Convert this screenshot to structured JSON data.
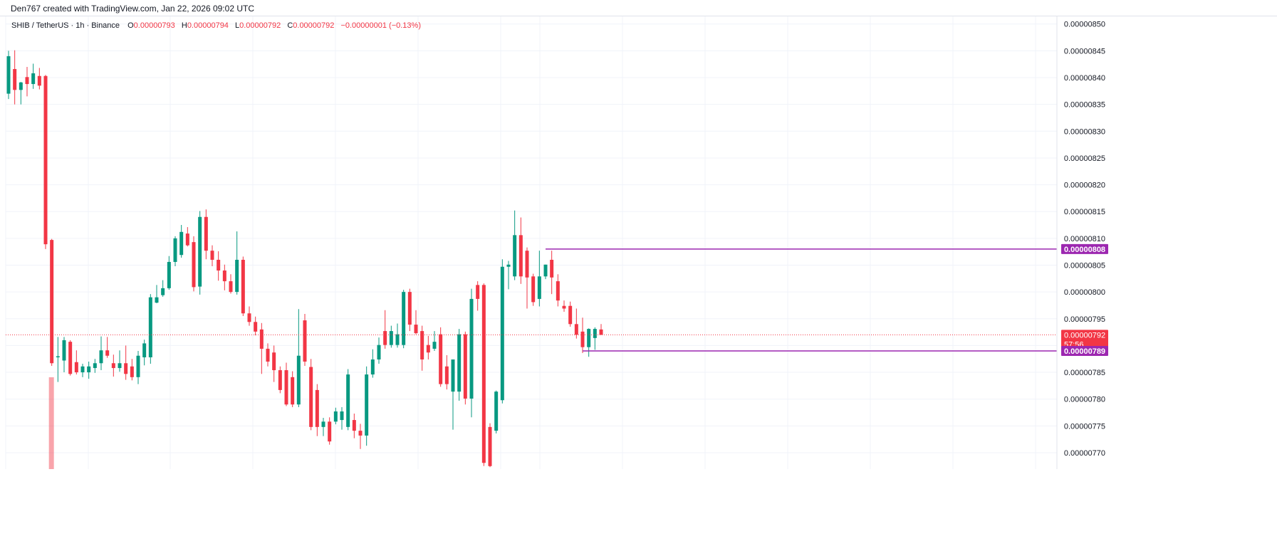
{
  "header": {
    "attribution": "Den767 created with TradingView.com, Jan 22, 2026 09:02 UTC"
  },
  "legend": {
    "symbol": "SHIB / TetherUS · 1h · Binance",
    "o_key": "O",
    "o_value": "0.00000793",
    "h_key": "H",
    "h_value": "0.00000794",
    "l_key": "L",
    "l_value": "0.00000792",
    "c_key": "C",
    "c_value": "0.00000792",
    "change": "−0.00000001 (−0.13%)"
  },
  "chart_data": {
    "type": "candlestick",
    "title": "",
    "xlabel": "",
    "ylabel": "",
    "grid": true,
    "ylim": [
      7.665e-06,
      8.51e-06
    ],
    "colors": {
      "up": "#089981",
      "down": "#F23645",
      "level": "#9C27B0",
      "current": "#F23645",
      "axis_text": "#131722",
      "grid": "#f0f3fa"
    },
    "y_ticks": [
      "0.00000850",
      "0.00000845",
      "0.00000840",
      "0.00000835",
      "0.00000830",
      "0.00000825",
      "0.00000820",
      "0.00000815",
      "0.00000810",
      "0.00000805",
      "0.00000800",
      "0.00000795",
      "0.00000790",
      "0.00000785",
      "0.00000780",
      "0.00000775",
      "0.00000770"
    ],
    "candles_ohlc": [
      [
        8.37e-06,
        8.45e-06,
        8.36e-06,
        8.44e-06
      ],
      [
        8.416e-06,
        8.451e-06,
        8.35e-06,
        8.377e-06
      ],
      [
        8.377e-06,
        8.392e-06,
        8.35e-06,
        8.391e-06
      ],
      [
        8.401e-06,
        8.42e-06,
        8.365e-06,
        8.388e-06
      ],
      [
        8.388e-06,
        8.426e-06,
        8.379e-06,
        8.408e-06
      ],
      [
        8.403e-06,
        8.418e-06,
        8.378e-06,
        8.385e-06
      ],
      [
        8.403e-06,
        8.405e-06,
        8.08e-06,
        8.089e-06
      ],
      [
        8.097e-06,
        8.099e-06,
        7.862e-06,
        7.867e-06
      ],
      [
        7.878e-06,
        7.916e-06,
        7.832e-06,
        7.88e-06
      ],
      [
        7.872e-06,
        7.916e-06,
        7.85e-06,
        7.91e-06
      ],
      [
        7.907e-06,
        7.91e-06,
        7.844e-06,
        7.847e-06
      ],
      [
        7.869e-06,
        7.891e-06,
        7.846e-06,
        7.85e-06
      ],
      [
        7.85e-06,
        7.866e-06,
        7.841e-06,
        7.861e-06
      ],
      [
        7.85e-06,
        7.87e-06,
        7.838e-06,
        7.861e-06
      ],
      [
        7.858e-06,
        7.875e-06,
        7.849e-06,
        7.867e-06
      ],
      [
        7.867e-06,
        7.917e-06,
        7.854e-06,
        7.891e-06
      ],
      [
        7.891e-06,
        7.916e-06,
        7.877e-06,
        7.881e-06
      ],
      [
        7.867e-06,
        7.883e-06,
        7.842e-06,
        7.858e-06
      ],
      [
        7.858e-06,
        7.891e-06,
        7.851e-06,
        7.867e-06
      ],
      [
        7.867e-06,
        7.9e-06,
        7.836e-06,
        7.847e-06
      ],
      [
        7.861e-06,
        7.875e-06,
        7.835e-06,
        7.841e-06
      ],
      [
        7.841e-06,
        7.89e-06,
        7.828e-06,
        7.881e-06
      ],
      [
        7.878e-06,
        7.911e-06,
        7.863e-06,
        7.904e-06
      ],
      [
        7.878e-06,
        7.996e-06,
        7.866e-06,
        7.99e-06
      ],
      [
        7.98e-06,
        8.013e-06,
        7.979e-06,
        7.99e-06
      ],
      [
        7.994e-06,
        8.022e-06,
        7.991e-06,
        8.007e-06
      ],
      [
        8.007e-06,
        8.067e-06,
        8.004e-06,
        8.056e-06
      ],
      [
        8.056e-06,
        8.104e-06,
        8.048e-06,
        8.1e-06
      ],
      [
        8.069e-06,
        8.125e-06,
        8.064e-06,
        8.112e-06
      ],
      [
        8.109e-06,
        8.121e-06,
        8.085e-06,
        8.087e-06
      ],
      [
        8.093e-06,
        8.104e-06,
        8.001e-06,
        8.009e-06
      ],
      [
        8.01e-06,
        8.151e-06,
        7.995e-06,
        8.14e-06
      ],
      [
        8.14e-06,
        8.154e-06,
        8.061e-06,
        8.077e-06
      ],
      [
        8.077e-06,
        8.087e-06,
        8.048e-06,
        8.06e-06
      ],
      [
        8.06e-06,
        8.076e-06,
        8.021e-06,
        8.04e-06
      ],
      [
        8.04e-06,
        8.051e-06,
        8.003e-06,
        8.02e-06
      ],
      [
        8.02e-06,
        8.033e-06,
        7.997e-06,
        8e-06
      ],
      [
        8e-06,
        8.113e-06,
        7.995e-06,
        8.06e-06
      ],
      [
        8.06e-06,
        8.066e-06,
        7.955e-06,
        7.96e-06
      ],
      [
        7.96e-06,
        7.973e-06,
        7.937e-06,
        7.944e-06
      ],
      [
        7.944e-06,
        7.954e-06,
        7.919e-06,
        7.926e-06
      ],
      [
        7.93e-06,
        7.942e-06,
        7.847e-06,
        7.894e-06
      ],
      [
        7.894e-06,
        7.904e-06,
        7.861e-06,
        7.87e-06
      ],
      [
        7.887e-06,
        7.9e-06,
        7.832e-06,
        7.854e-06
      ],
      [
        7.854e-06,
        7.861e-06,
        7.811e-06,
        7.817e-06
      ],
      [
        7.854e-06,
        7.868e-06,
        7.787e-06,
        7.79e-06
      ],
      [
        7.841e-06,
        7.852e-06,
        7.785e-06,
        7.79e-06
      ],
      [
        7.79e-06,
        7.968e-06,
        7.785e-06,
        7.881e-06
      ],
      [
        7.947e-06,
        7.959e-06,
        7.862e-06,
        7.87e-06
      ],
      [
        7.86e-06,
        7.875e-06,
        7.742e-06,
        7.748e-06
      ],
      [
        7.817e-06,
        7.828e-06,
        7.731e-06,
        7.748e-06
      ],
      [
        7.748e-06,
        7.765e-06,
        7.731e-06,
        7.758e-06
      ],
      [
        7.758e-06,
        7.766e-06,
        7.715e-06,
        7.721e-06
      ],
      [
        7.758e-06,
        7.784e-06,
        7.753e-06,
        7.777e-06
      ],
      [
        7.761e-06,
        7.785e-06,
        7.743e-06,
        7.777e-06
      ],
      [
        7.748e-06,
        7.856e-06,
        7.742e-06,
        7.846e-06
      ],
      [
        7.761e-06,
        7.773e-06,
        7.727e-06,
        7.741e-06
      ],
      [
        7.741e-06,
        7.754e-06,
        7.707e-06,
        7.732e-06
      ],
      [
        7.732e-06,
        7.861e-06,
        7.713e-06,
        7.846e-06
      ],
      [
        7.846e-06,
        7.893e-06,
        7.84e-06,
        7.874e-06
      ],
      [
        7.874e-06,
        7.915e-06,
        7.866e-06,
        7.901e-06
      ],
      [
        7.927e-06,
        7.966e-06,
        7.894e-06,
        7.901e-06
      ],
      [
        7.901e-06,
        7.937e-06,
        7.896e-06,
        7.927e-06
      ],
      [
        7.901e-06,
        7.941e-06,
        7.896e-06,
        7.921e-06
      ],
      [
        7.901e-06,
        8.004e-06,
        7.895e-06,
        8e-06
      ],
      [
        8e-06,
        8.006e-06,
        7.927e-06,
        7.939e-06
      ],
      [
        7.939e-06,
        7.966e-06,
        7.921e-06,
        7.923e-06
      ],
      [
        7.927e-06,
        7.937e-06,
        7.853e-06,
        7.874e-06
      ],
      [
        7.901e-06,
        7.918e-06,
        7.874e-06,
        7.887e-06
      ],
      [
        7.894e-06,
        7.927e-06,
        7.89e-06,
        7.907e-06
      ],
      [
        7.921e-06,
        7.934e-06,
        7.823e-06,
        7.828e-06
      ],
      [
        7.861e-06,
        7.882e-06,
        7.818e-06,
        7.828e-06
      ],
      [
        7.814e-06,
        7.873e-06,
        7.743e-06,
        7.874e-06
      ],
      [
        7.814e-06,
        7.931e-06,
        7.797e-06,
        7.921e-06
      ],
      [
        7.921e-06,
        7.926e-06,
        7.79e-06,
        7.801e-06
      ],
      [
        7.801e-06,
        8.006e-06,
        7.766e-06,
        7.987e-06
      ],
      [
        8.013e-06,
        8.02e-06,
        7.965e-06,
        7.987e-06
      ],
      [
        8.013e-06,
        8.016e-06,
        7.675e-06,
        7.681e-06
      ],
      [
        7.748e-06,
        7.755e-06,
        7.673e-06,
        7.675e-06
      ],
      [
        7.741e-06,
        7.816e-06,
        7.736e-06,
        7.814e-06
      ],
      [
        7.798e-06,
        8.061e-06,
        7.792e-06,
        8.047e-06
      ],
      [
        8.047e-06,
        8.058e-06,
        8.005e-06,
        8.051e-06
      ],
      [
        8.029e-06,
        8.152e-06,
        8.022e-06,
        8.106e-06
      ],
      [
        8.106e-06,
        8.139e-06,
        8.015e-06,
        8.029e-06
      ],
      [
        8.077e-06,
        8.083e-06,
        7.969e-06,
        8.027e-06
      ],
      [
        8.029e-06,
        8.034e-06,
        7.974e-06,
        7.981e-06
      ],
      [
        7.987e-06,
        8.077e-06,
        7.973e-06,
        8.029e-06
      ],
      [
        8.029e-06,
        8.051e-06,
        8.024e-06,
        8.051e-06
      ],
      [
        8.06e-06,
        8.077e-06,
        7.996e-06,
        8.027e-06
      ],
      [
        8.02e-06,
        8.033e-06,
        7.973e-06,
        7.984e-06
      ],
      [
        7.974e-06,
        7.984e-06,
        7.963e-06,
        7.969e-06
      ],
      [
        7.974e-06,
        7.982e-06,
        7.935e-06,
        7.94e-06
      ],
      [
        7.94e-06,
        7.969e-06,
        7.913e-06,
        7.92e-06
      ],
      [
        7.926e-06,
        7.952e-06,
        7.886e-06,
        7.897e-06
      ],
      [
        7.897e-06,
        7.932e-06,
        7.879e-06,
        7.931e-06
      ],
      [
        7.914e-06,
        7.934e-06,
        7.892e-06,
        7.931e-06
      ],
      [
        7.93e-06,
        7.94e-06,
        7.92e-06,
        7.92e-06
      ]
    ],
    "highlight_volume_candle": 7,
    "levels": [
      {
        "price": 8.08e-06,
        "label": "0.00000808",
        "from_candle": 87
      },
      {
        "price": 7.89e-06,
        "label": "0.00000789",
        "from_candle": 93
      }
    ],
    "current_price": {
      "price": 7.92e-06,
      "label": "0.00000792",
      "countdown": "57:56"
    }
  }
}
